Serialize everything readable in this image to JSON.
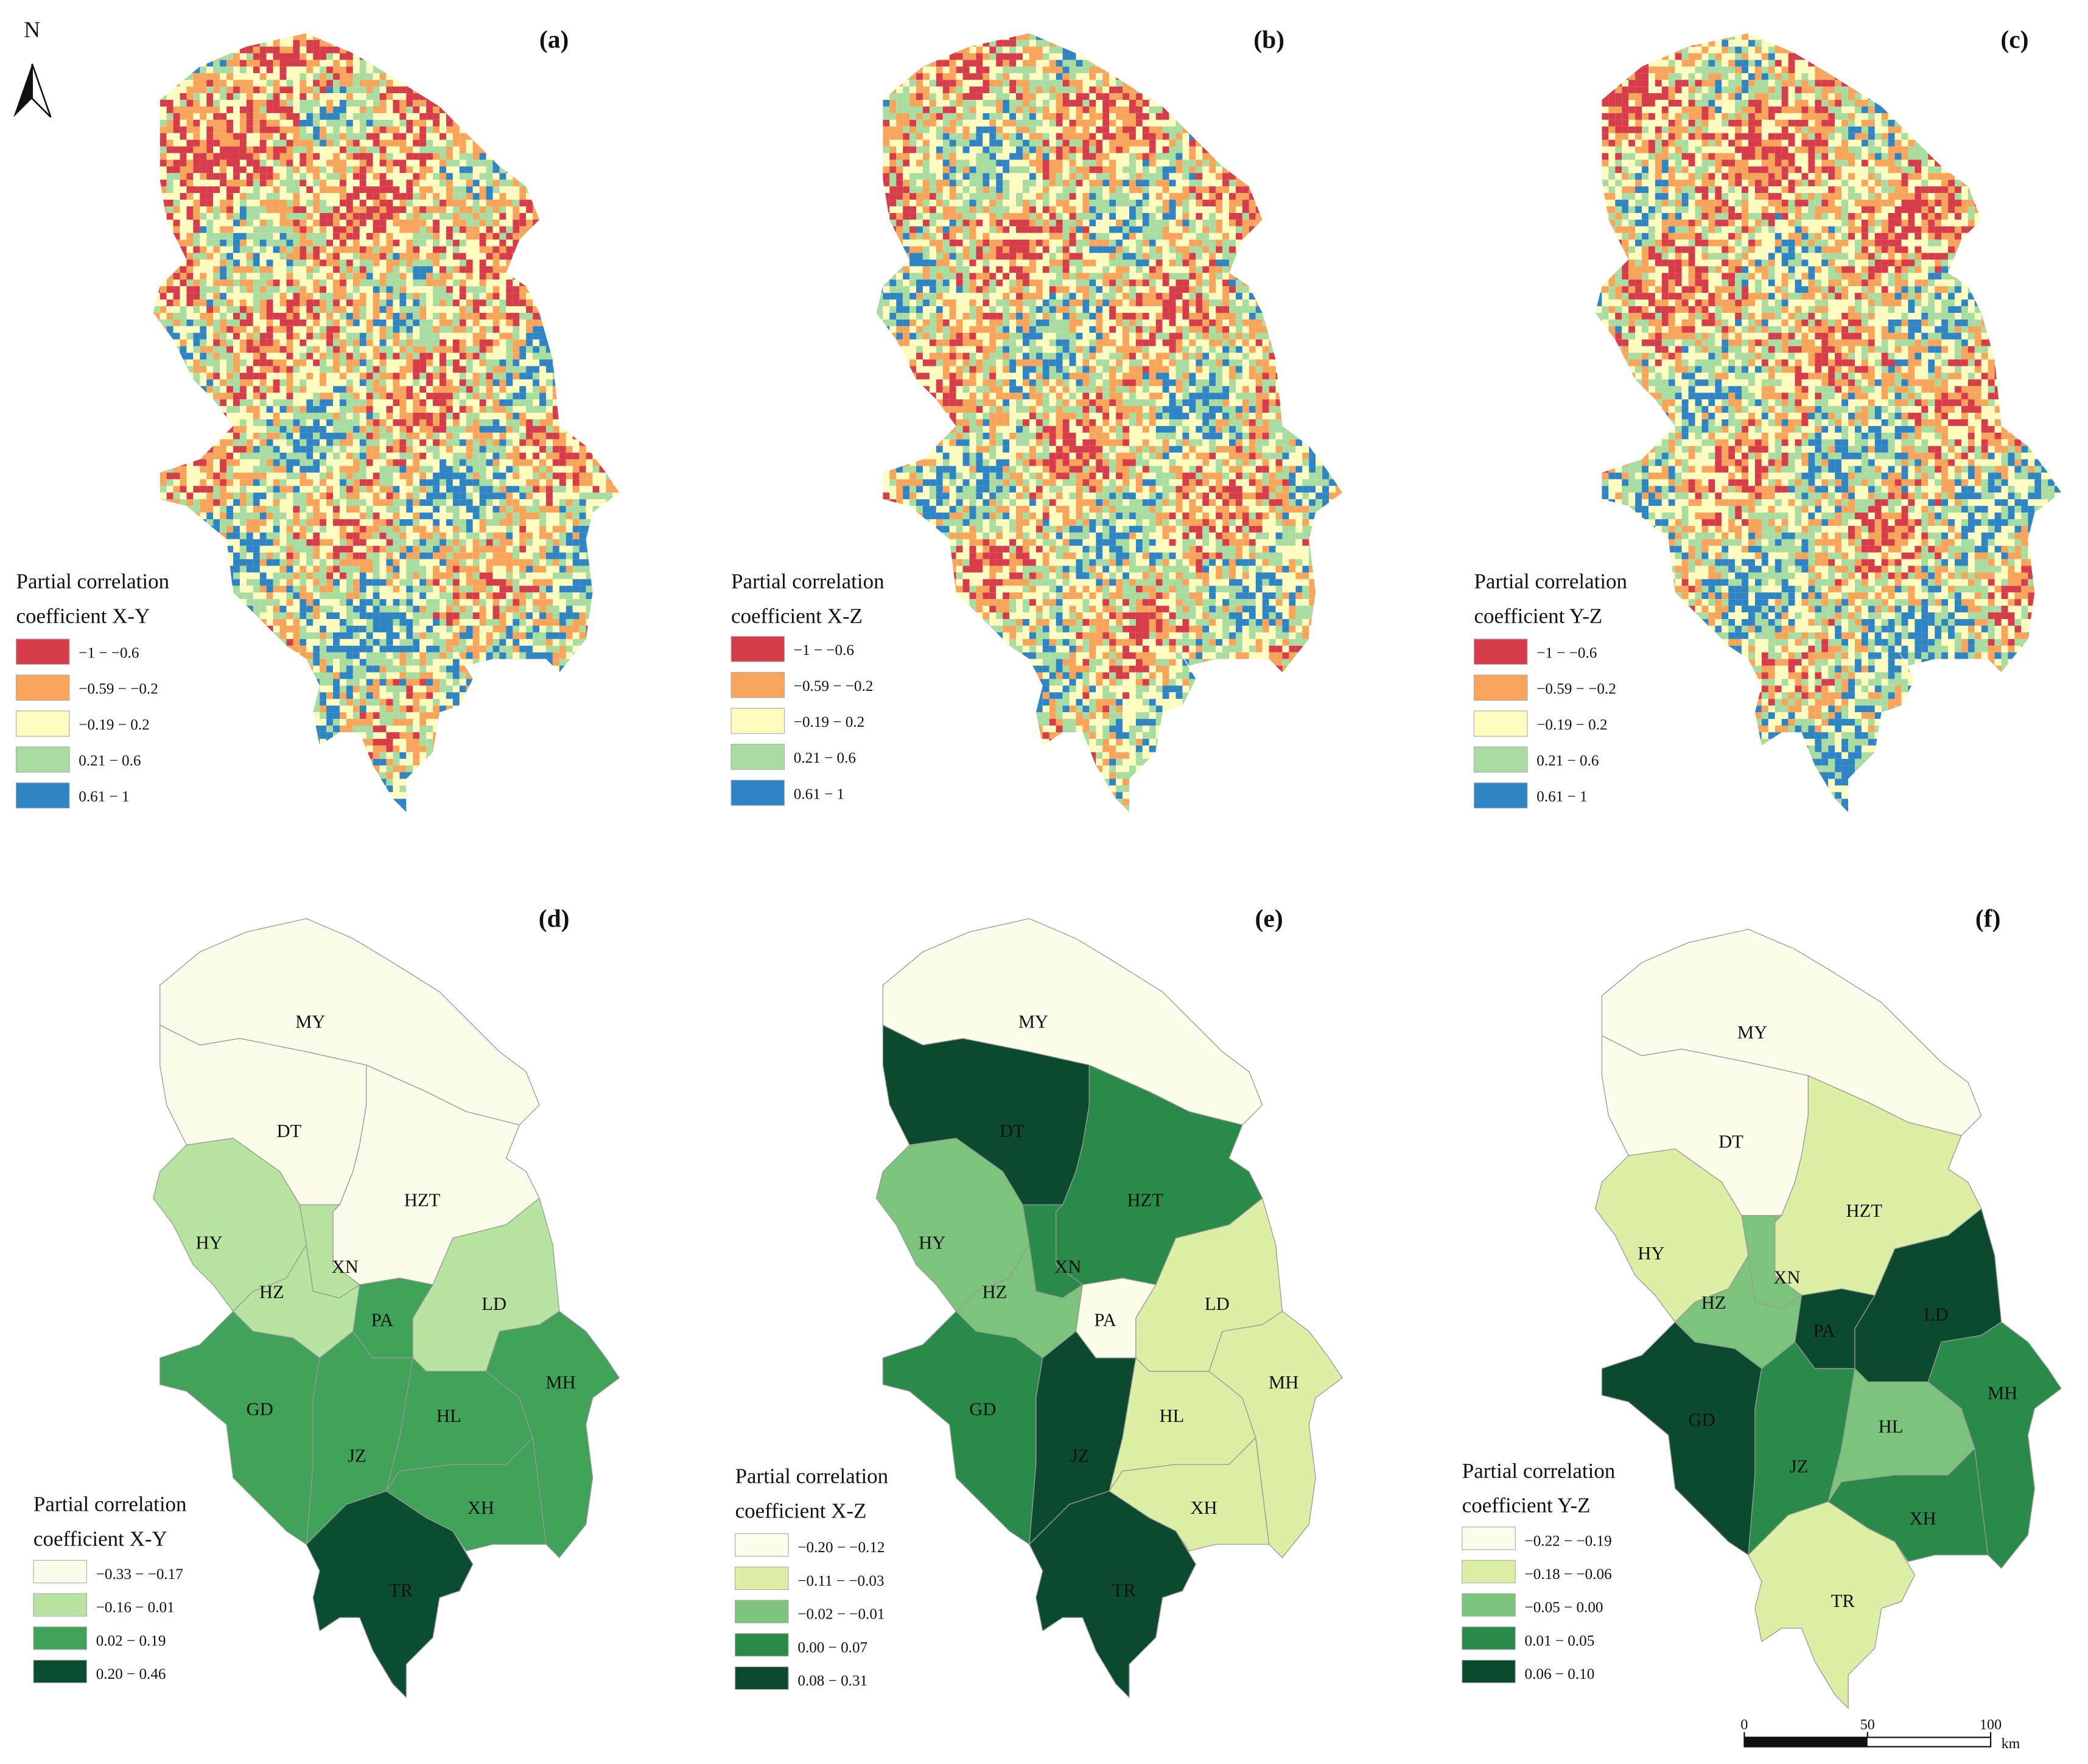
{
  "north_label": "N",
  "scale_bar": {
    "ticks": [
      0,
      50,
      100
    ],
    "unit": "km"
  },
  "panels": [
    {
      "label": "(a)",
      "legend": {
        "title": [
          "Partial correlation",
          "coefficient X-Y"
        ],
        "items": [
          {
            "label": "−1 − −0.6",
            "color": "#d73c4a"
          },
          {
            "label": "−0.59 − −0.2",
            "color": "#f9a45b"
          },
          {
            "label": "−0.19 − 0.2",
            "color": "#fefcbf"
          },
          {
            "label": "0.21 − 0.6",
            "color": "#a9dca0"
          },
          {
            "label": "0.61 − 1",
            "color": "#2f84c4"
          }
        ]
      }
    },
    {
      "label": "(b)",
      "legend": {
        "title": [
          "Partial correlation",
          "coefficient X-Z"
        ],
        "items": [
          {
            "label": "−1 − −0.6",
            "color": "#d73c4a"
          },
          {
            "label": "−0.59 − −0.2",
            "color": "#f9a45b"
          },
          {
            "label": "−0.19 − 0.2",
            "color": "#fefcbf"
          },
          {
            "label": "0.21 − 0.6",
            "color": "#a9dca0"
          },
          {
            "label": "0.61 − 1",
            "color": "#2f84c4"
          }
        ]
      }
    },
    {
      "label": "(c)",
      "legend": {
        "title": [
          "Partial correlation",
          "coefficient Y-Z"
        ],
        "items": [
          {
            "label": "−1 − −0.6",
            "color": "#d73c4a"
          },
          {
            "label": "−0.59 − −0.2",
            "color": "#f9a45b"
          },
          {
            "label": "−0.19 − 0.2",
            "color": "#fefcbf"
          },
          {
            "label": "0.21 − 0.6",
            "color": "#a9dca0"
          },
          {
            "label": "0.61 − 1",
            "color": "#2f84c4"
          }
        ]
      }
    },
    {
      "label": "(d)",
      "legend": {
        "title": [
          "Partial correlation",
          "coefficient X-Y"
        ],
        "items": [
          {
            "label": "−0.33 − −0.17",
            "color": "#fafbe8"
          },
          {
            "label": "−0.16 − 0.01",
            "color": "#b8e4a1"
          },
          {
            "label": "0.02 − 0.19",
            "color": "#41a25a"
          },
          {
            "label": "0.20 − 0.46",
            "color": "#0b4d30"
          }
        ]
      },
      "regions": [
        {
          "name": "MY",
          "color": "#fafbe8"
        },
        {
          "name": "DT",
          "color": "#fafbe8"
        },
        {
          "name": "HZT",
          "color": "#fafbe8"
        },
        {
          "name": "HY",
          "color": "#b8e4a1"
        },
        {
          "name": "XN",
          "color": "#b8e4a1"
        },
        {
          "name": "HZ",
          "color": "#b8e4a1"
        },
        {
          "name": "PA",
          "color": "#41a25a"
        },
        {
          "name": "LD",
          "color": "#b8e4a1"
        },
        {
          "name": "GD",
          "color": "#41a25a"
        },
        {
          "name": "JZ",
          "color": "#41a25a"
        },
        {
          "name": "HL",
          "color": "#41a25a"
        },
        {
          "name": "MH",
          "color": "#41a25a"
        },
        {
          "name": "XH",
          "color": "#41a25a"
        },
        {
          "name": "TR",
          "color": "#0b4d30"
        }
      ]
    },
    {
      "label": "(e)",
      "legend": {
        "title": [
          "Partial correlation",
          "coefficient X-Z"
        ],
        "items": [
          {
            "label": "−0.20 − −0.12",
            "color": "#fcfdea"
          },
          {
            "label": "−0.11 − −0.03",
            "color": "#dcefa4"
          },
          {
            "label": "−0.02 − −0.01",
            "color": "#7cc47c"
          },
          {
            "label": "0.00 − 0.07",
            "color": "#2a8a4a"
          },
          {
            "label": "0.08 − 0.31",
            "color": "#0b4a2e"
          }
        ]
      },
      "regions": [
        {
          "name": "MY",
          "color": "#fcfdea"
        },
        {
          "name": "DT",
          "color": "#0b4a2e"
        },
        {
          "name": "HZT",
          "color": "#2a8a4a"
        },
        {
          "name": "HY",
          "color": "#7cc47c"
        },
        {
          "name": "XN",
          "color": "#2a8a4a"
        },
        {
          "name": "HZ",
          "color": "#7cc47c"
        },
        {
          "name": "PA",
          "color": "#fcfdea"
        },
        {
          "name": "LD",
          "color": "#dcefa4"
        },
        {
          "name": "GD",
          "color": "#2a8a4a"
        },
        {
          "name": "JZ",
          "color": "#0b4a2e"
        },
        {
          "name": "HL",
          "color": "#dcefa4"
        },
        {
          "name": "MH",
          "color": "#dcefa4"
        },
        {
          "name": "XH",
          "color": "#dcefa4"
        },
        {
          "name": "TR",
          "color": "#0b4a2e"
        }
      ]
    },
    {
      "label": "(f)",
      "legend": {
        "title": [
          "Partial correlation",
          "coefficient Y-Z"
        ],
        "items": [
          {
            "label": "−0.22 − −0.19",
            "color": "#fcfdea"
          },
          {
            "label": "−0.18 − −0.06",
            "color": "#dcefa4"
          },
          {
            "label": "−0.05 − 0.00",
            "color": "#7cc47c"
          },
          {
            "label": "0.01 − 0.05",
            "color": "#2a8a4a"
          },
          {
            "label": "0.06 − 0.10",
            "color": "#0b4a2e"
          }
        ]
      },
      "regions": [
        {
          "name": "MY",
          "color": "#fcfdea"
        },
        {
          "name": "DT",
          "color": "#fcfdea"
        },
        {
          "name": "HZT",
          "color": "#dcefa4"
        },
        {
          "name": "HY",
          "color": "#dcefa4"
        },
        {
          "name": "XN",
          "color": "#7cc47c"
        },
        {
          "name": "HZ",
          "color": "#7cc47c"
        },
        {
          "name": "PA",
          "color": "#0b4a2e"
        },
        {
          "name": "LD",
          "color": "#0b4a2e"
        },
        {
          "name": "GD",
          "color": "#0b4a2e"
        },
        {
          "name": "JZ",
          "color": "#2a8a4a"
        },
        {
          "name": "HL",
          "color": "#7cc47c"
        },
        {
          "name": "MH",
          "color": "#2a8a4a"
        },
        {
          "name": "XH",
          "color": "#2a8a4a"
        },
        {
          "name": "TR",
          "color": "#dcefa4"
        }
      ]
    }
  ]
}
